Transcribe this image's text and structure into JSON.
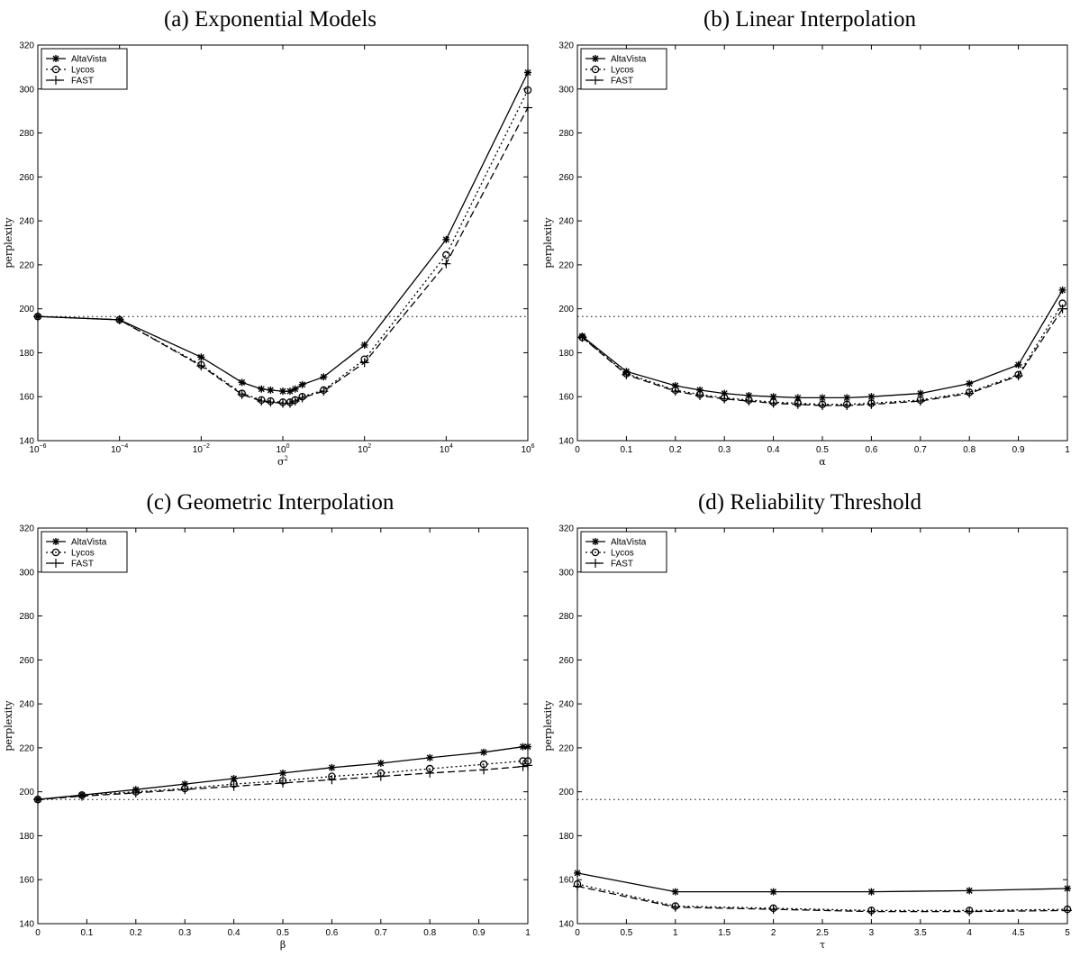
{
  "chart_data": [
    {
      "panel": "a",
      "type": "line",
      "title": "(a) Exponential Models",
      "xlabel": "σ²",
      "ylabel": "perplexity",
      "xscale": "log",
      "xlim": [
        1e-06,
        1000000.0
      ],
      "ylim": [
        140,
        320
      ],
      "xticks": [
        1e-06,
        0.0001,
        0.01,
        1,
        100.0,
        10000.0,
        1000000.0
      ],
      "xtick_labels": [
        {
          "base": "10",
          "exp": "−6"
        },
        {
          "base": "10",
          "exp": "−4"
        },
        {
          "base": "10",
          "exp": "−2"
        },
        {
          "base": "10",
          "exp": "0"
        },
        {
          "base": "10",
          "exp": "2"
        },
        {
          "base": "10",
          "exp": "4"
        },
        {
          "base": "10",
          "exp": "6"
        }
      ],
      "yticks": [
        140,
        160,
        180,
        200,
        220,
        240,
        260,
        280,
        300,
        320
      ],
      "legend": "top-left",
      "baseline": 196.5,
      "x": [
        1e-06,
        0.0001,
        0.01,
        0.1,
        0.3,
        0.5,
        1,
        1.5,
        2,
        3,
        10,
        100,
        10000,
        1000000
      ],
      "series": [
        {
          "name": "AltaVista",
          "marker": "star",
          "dash": "",
          "values": [
            196.5,
            195,
            178,
            166.5,
            163.5,
            163,
            162.5,
            162.5,
            163.5,
            165.5,
            169,
            183.5,
            231.5,
            307.5
          ]
        },
        {
          "name": "Lycos",
          "marker": "circle",
          "dash": "2,3",
          "values": [
            196.5,
            195,
            174.5,
            161.5,
            158.5,
            158,
            157.5,
            157.5,
            158.5,
            160,
            163,
            177,
            224.5,
            299.5
          ]
        },
        {
          "name": "FAST",
          "marker": "plus",
          "dash": "8,4",
          "values": [
            196.5,
            195,
            174,
            161,
            158,
            157.5,
            157,
            157,
            158,
            159.5,
            162.5,
            175.5,
            220.5,
            291.5
          ]
        }
      ]
    },
    {
      "panel": "b",
      "type": "line",
      "title": "(b) Linear Interpolation",
      "xlabel": "α",
      "ylabel": "perplexity",
      "xscale": "linear",
      "xlim": [
        0,
        1
      ],
      "ylim": [
        140,
        320
      ],
      "xticks": [
        0,
        0.1,
        0.2,
        0.3,
        0.4,
        0.5,
        0.6,
        0.7,
        0.8,
        0.9,
        1
      ],
      "xtick_labels": [
        "0",
        "0.1",
        "0.2",
        "0.3",
        "0.4",
        "0.5",
        "0.6",
        "0.7",
        "0.8",
        "0.9",
        "1"
      ],
      "yticks": [
        140,
        160,
        180,
        200,
        220,
        240,
        260,
        280,
        300,
        320
      ],
      "legend": "top-left",
      "baseline": 196.5,
      "x": [
        0.01,
        0.1,
        0.2,
        0.25,
        0.3,
        0.35,
        0.4,
        0.45,
        0.5,
        0.55,
        0.6,
        0.7,
        0.8,
        0.9,
        0.99
      ],
      "series": [
        {
          "name": "AltaVista",
          "marker": "star",
          "dash": "",
          "values": [
            187.5,
            171.5,
            165,
            163,
            161.5,
            160.5,
            160,
            159.5,
            159.5,
            159.5,
            160,
            161.5,
            166,
            174.5,
            208.5
          ]
        },
        {
          "name": "Lycos",
          "marker": "circle",
          "dash": "2,3",
          "values": [
            187,
            170.5,
            163,
            161,
            159.5,
            158.5,
            157.5,
            157,
            156.5,
            156.5,
            157,
            158.5,
            162,
            170,
            202.5
          ]
        },
        {
          "name": "FAST",
          "marker": "plus",
          "dash": "8,4",
          "values": [
            187,
            170,
            162.5,
            160.5,
            159,
            158,
            157,
            156.5,
            156,
            156,
            156.5,
            158,
            161.5,
            169.5,
            200
          ]
        }
      ]
    },
    {
      "panel": "c",
      "type": "line",
      "title": "(c) Geometric Interpolation",
      "xlabel": "β",
      "ylabel": "perplexity",
      "xscale": "linear",
      "xlim": [
        0,
        1
      ],
      "ylim": [
        140,
        320
      ],
      "xticks": [
        0,
        0.1,
        0.2,
        0.3,
        0.4,
        0.5,
        0.6,
        0.7,
        0.8,
        0.9,
        1
      ],
      "xtick_labels": [
        "0",
        "0.1",
        "0.2",
        "0.3",
        "0.4",
        "0.5",
        "0.6",
        "0.7",
        "0.8",
        "0.9",
        "1"
      ],
      "yticks": [
        140,
        160,
        180,
        200,
        220,
        240,
        260,
        280,
        300,
        320
      ],
      "legend": "top-left",
      "baseline": 196.5,
      "x": [
        0,
        0.09,
        0.2,
        0.3,
        0.4,
        0.5,
        0.6,
        0.7,
        0.8,
        0.91,
        0.99,
        1
      ],
      "series": [
        {
          "name": "AltaVista",
          "marker": "star",
          "dash": "",
          "values": [
            196.5,
            198.5,
            201,
            203.5,
            206,
            208.5,
            211,
            213,
            215.5,
            218,
            220.5,
            220.5
          ]
        },
        {
          "name": "Lycos",
          "marker": "circle",
          "dash": "2,3",
          "values": [
            196.5,
            198.5,
            200,
            201.5,
            203.5,
            205,
            207,
            208.5,
            210.5,
            212.5,
            214,
            214
          ]
        },
        {
          "name": "FAST",
          "marker": "plus",
          "dash": "8,4",
          "values": [
            196.5,
            198,
            199.5,
            201,
            202.5,
            204,
            205.5,
            207,
            208.5,
            210,
            211.5,
            212
          ]
        }
      ]
    },
    {
      "panel": "d",
      "type": "line",
      "title": "(d) Reliability Threshold",
      "xlabel": "τ",
      "ylabel": "perplexity",
      "xscale": "linear",
      "xlim": [
        0,
        5
      ],
      "ylim": [
        140,
        320
      ],
      "xticks": [
        0,
        0.5,
        1,
        1.5,
        2,
        2.5,
        3,
        3.5,
        4,
        4.5,
        5
      ],
      "xtick_labels": [
        "0",
        "0.5",
        "1",
        "1.5",
        "2",
        "2.5",
        "3",
        "3.5",
        "4",
        "4.5",
        "5"
      ],
      "yticks": [
        140,
        160,
        180,
        200,
        220,
        240,
        260,
        280,
        300,
        320
      ],
      "legend": "top-left",
      "baseline": 196.5,
      "x": [
        0,
        1,
        2,
        3,
        4,
        5
      ],
      "series": [
        {
          "name": "AltaVista",
          "marker": "star",
          "dash": "",
          "values": [
            163,
            154.5,
            154.5,
            154.5,
            155,
            156
          ]
        },
        {
          "name": "Lycos",
          "marker": "circle",
          "dash": "2,3",
          "values": [
            158,
            148,
            147,
            146,
            146,
            146.5
          ]
        },
        {
          "name": "FAST",
          "marker": "plus",
          "dash": "8,4",
          "values": [
            157,
            147.5,
            146.5,
            145.5,
            145.5,
            146
          ]
        }
      ]
    }
  ]
}
